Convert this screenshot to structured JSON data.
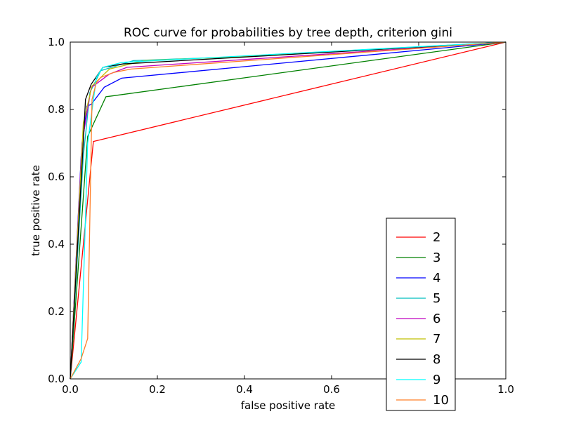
{
  "chart_data": {
    "type": "line",
    "title": "ROC curve for probabilities by tree depth, criterion gini",
    "xlabel": "false positive rate",
    "ylabel": "true positive rate",
    "xlim": [
      0.0,
      1.0
    ],
    "ylim": [
      0.0,
      1.0
    ],
    "xticks": [
      "0.0",
      "0.2",
      "0.4",
      "0.6",
      "0.8",
      "1.0"
    ],
    "yticks": [
      "0.0",
      "0.2",
      "0.4",
      "0.6",
      "0.8",
      "1.0"
    ],
    "grid": false,
    "legend_position": "lower-right",
    "series": [
      {
        "name": "2",
        "color": "#ff0000",
        "points": [
          [
            0.0,
            0.0
          ],
          [
            0.053,
            0.705
          ],
          [
            1.0,
            1.0
          ]
        ]
      },
      {
        "name": "3",
        "color": "#008000",
        "points": [
          [
            0.0,
            0.0
          ],
          [
            0.04,
            0.72
          ],
          [
            0.082,
            0.838
          ],
          [
            0.095,
            0.84
          ],
          [
            1.0,
            1.0
          ]
        ]
      },
      {
        "name": "4",
        "color": "#0000ff",
        "points": [
          [
            0.0,
            0.0
          ],
          [
            0.025,
            0.66
          ],
          [
            0.038,
            0.81
          ],
          [
            0.048,
            0.815
          ],
          [
            0.078,
            0.866
          ],
          [
            0.118,
            0.893
          ],
          [
            1.0,
            1.0
          ]
        ]
      },
      {
        "name": "5",
        "color": "#00bfbf",
        "points": [
          [
            0.0,
            0.0
          ],
          [
            0.03,
            0.66
          ],
          [
            0.045,
            0.85
          ],
          [
            0.07,
            0.915
          ],
          [
            0.145,
            0.945
          ],
          [
            0.35,
            0.955
          ],
          [
            1.0,
            1.0
          ]
        ]
      },
      {
        "name": "6",
        "color": "#bf00bf",
        "points": [
          [
            0.0,
            0.0
          ],
          [
            0.027,
            0.7
          ],
          [
            0.048,
            0.865
          ],
          [
            0.09,
            0.905
          ],
          [
            0.13,
            0.925
          ],
          [
            1.0,
            1.0
          ]
        ]
      },
      {
        "name": "7",
        "color": "#bfbf00",
        "points": [
          [
            0.0,
            0.0
          ],
          [
            0.03,
            0.76
          ],
          [
            0.05,
            0.87
          ],
          [
            0.09,
            0.92
          ],
          [
            0.17,
            0.945
          ],
          [
            0.45,
            0.96
          ],
          [
            1.0,
            1.0
          ]
        ]
      },
      {
        "name": "8",
        "color": "#000000",
        "points": [
          [
            0.0,
            0.0
          ],
          [
            0.03,
            0.705
          ],
          [
            0.035,
            0.83
          ],
          [
            0.048,
            0.875
          ],
          [
            0.075,
            0.925
          ],
          [
            0.12,
            0.935
          ],
          [
            1.0,
            1.0
          ]
        ]
      },
      {
        "name": "9",
        "color": "#00ffff",
        "points": [
          [
            0.0,
            0.0
          ],
          [
            0.025,
            0.05
          ],
          [
            0.04,
            0.7
          ],
          [
            0.06,
            0.895
          ],
          [
            0.075,
            0.925
          ],
          [
            0.12,
            0.94
          ],
          [
            1.0,
            1.0
          ]
        ]
      },
      {
        "name": "10",
        "color": "#ff7f27",
        "points": [
          [
            0.0,
            0.0
          ],
          [
            0.025,
            0.06
          ],
          [
            0.04,
            0.12
          ],
          [
            0.05,
            0.83
          ],
          [
            0.06,
            0.88
          ],
          [
            0.07,
            0.895
          ],
          [
            0.1,
            0.91
          ],
          [
            0.14,
            0.92
          ],
          [
            1.0,
            1.0
          ]
        ]
      }
    ]
  }
}
